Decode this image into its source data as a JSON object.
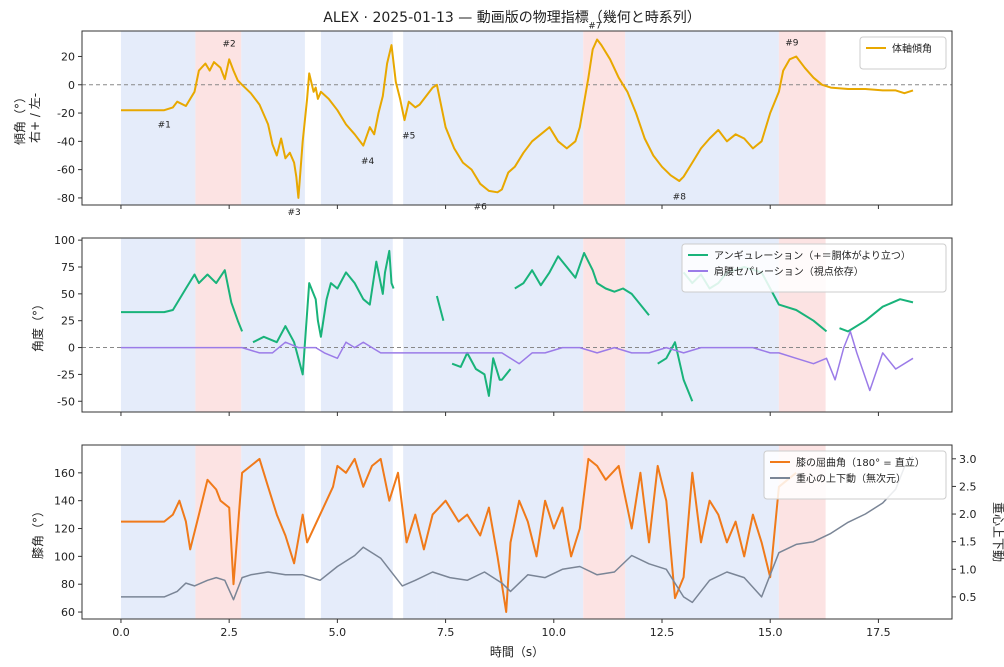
{
  "title": "ALEX · 2025-01-13 — 動画版の物理指標（幾何と時系列）",
  "colors": {
    "blue_band": "#dce6f8",
    "red_band": "#fbdada",
    "tilt": "#e8a800",
    "angulation": "#19b37a",
    "separation": "#9b7be8",
    "knee": "#f07a1a",
    "com": "#7a8596",
    "zero_line": "#888888"
  },
  "bands": [
    {
      "start": 0.0,
      "end": 1.72,
      "kind": "blue"
    },
    {
      "start": 1.72,
      "end": 2.78,
      "kind": "red"
    },
    {
      "start": 2.78,
      "end": 4.25,
      "kind": "blue"
    },
    {
      "start": 4.62,
      "end": 6.28,
      "kind": "blue"
    },
    {
      "start": 6.52,
      "end": 7.3,
      "kind": "blue"
    },
    {
      "start": 7.3,
      "end": 10.68,
      "kind": "blue"
    },
    {
      "start": 10.68,
      "end": 11.65,
      "kind": "red"
    },
    {
      "start": 11.65,
      "end": 15.2,
      "kind": "blue"
    },
    {
      "start": 15.2,
      "end": 16.28,
      "kind": "red"
    }
  ],
  "chart_data": [
    {
      "type": "line",
      "ylabel": "傾角（°）\n右+ / 左-",
      "ylim": [
        -85,
        38
      ],
      "xlim": [
        -0.9,
        19.2
      ],
      "yticks": [
        20,
        0,
        -20,
        -40,
        -60,
        -80
      ],
      "yticks_labels": [
        "20",
        "0",
        "-20",
        "-40",
        "-60",
        "-80"
      ],
      "legend": "top-right",
      "series": [
        {
          "name": "体軸傾角",
          "x": [
            0,
            1.0,
            1.2,
            1.3,
            1.5,
            1.7,
            1.8,
            1.95,
            2.05,
            2.15,
            2.3,
            2.4,
            2.5,
            2.6,
            2.7,
            2.8,
            3.0,
            3.2,
            3.4,
            3.5,
            3.6,
            3.7,
            3.8,
            3.9,
            4.0,
            4.05,
            4.1,
            4.2,
            4.3,
            4.35,
            4.45,
            4.5,
            4.55,
            4.62,
            4.8,
            5.0,
            5.2,
            5.4,
            5.6,
            5.75,
            5.85,
            5.95,
            6.05,
            6.15,
            6.25,
            6.35,
            6.45,
            6.55,
            6.65,
            6.8,
            6.9,
            7.05,
            7.2,
            7.3,
            7.5,
            7.7,
            7.9,
            8.1,
            8.3,
            8.5,
            8.7,
            8.8,
            8.95,
            9.1,
            9.3,
            9.5,
            9.7,
            9.9,
            10.1,
            10.3,
            10.5,
            10.6,
            10.8,
            10.9,
            11.0,
            11.1,
            11.3,
            11.5,
            11.7,
            11.9,
            12.1,
            12.3,
            12.5,
            12.7,
            12.9,
            13.0,
            13.2,
            13.4,
            13.6,
            13.8,
            14.0,
            14.2,
            14.4,
            14.6,
            14.8,
            15.0,
            15.2,
            15.3,
            15.45,
            15.6,
            15.8,
            16.0,
            16.2,
            16.4,
            16.8,
            17.2,
            17.6,
            17.9,
            18.1,
            18.3
          ],
          "y": [
            -18,
            -18,
            -16,
            -12,
            -15,
            -5,
            10,
            15,
            10,
            16,
            12,
            4,
            18,
            10,
            3,
            0,
            -6,
            -14,
            -28,
            -42,
            -50,
            -38,
            -52,
            -48,
            -55,
            -65,
            -80,
            -40,
            -10,
            8,
            -5,
            -2,
            -10,
            -5,
            -10,
            -18,
            -28,
            -35,
            -43,
            -30,
            -35,
            -20,
            -8,
            15,
            28,
            2,
            -10,
            -25,
            -12,
            -16,
            -14,
            -8,
            -2,
            0,
            -30,
            -45,
            -55,
            -60,
            -70,
            -75,
            -76,
            -74,
            -62,
            -58,
            -48,
            -40,
            -35,
            -30,
            -40,
            -45,
            -40,
            -30,
            5,
            25,
            32,
            28,
            18,
            5,
            -5,
            -20,
            -38,
            -50,
            -58,
            -64,
            -68,
            -65,
            -55,
            -45,
            -38,
            -32,
            -40,
            -35,
            -38,
            -45,
            -40,
            -20,
            -5,
            10,
            18,
            20,
            12,
            5,
            0,
            -2,
            -3,
            -3,
            -4,
            -4,
            -6,
            -4
          ]
        }
      ],
      "annotations": [
        {
          "label": "#1",
          "x": 1.0,
          "y": -28
        },
        {
          "label": "#2",
          "x": 2.5,
          "y": 29
        },
        {
          "label": "#3",
          "x": 4.0,
          "y": -90
        },
        {
          "label": "#4",
          "x": 5.7,
          "y": -54
        },
        {
          "label": "#5",
          "x": 6.65,
          "y": -36
        },
        {
          "label": "#6",
          "x": 8.3,
          "y": -86
        },
        {
          "label": "#7",
          "x": 10.95,
          "y": 42
        },
        {
          "label": "#8",
          "x": 12.9,
          "y": -79
        },
        {
          "label": "#9",
          "x": 15.5,
          "y": 30
        }
      ]
    },
    {
      "type": "line",
      "ylabel": "角度（°）",
      "ylim": [
        -60,
        102
      ],
      "xlim": [
        -0.9,
        19.2
      ],
      "yticks": [
        100,
        75,
        50,
        25,
        0,
        -25,
        -50
      ],
      "yticks_labels": [
        "100",
        "75",
        "50",
        "25",
        "0",
        "-25",
        "-50"
      ],
      "legend": "top-right",
      "series": [
        {
          "name": "アンギュレーション（+＝胴体がより立つ）",
          "segments": [
            {
              "x": [
                0,
                0.8,
                1.0,
                1.2,
                1.5,
                1.7,
                1.8,
                2.0,
                2.2,
                2.4,
                2.55,
                2.7,
                2.8
              ],
              "y": [
                33,
                33,
                33,
                35,
                55,
                68,
                60,
                68,
                60,
                72,
                42,
                25,
                15
              ]
            },
            {
              "x": [
                3.05,
                3.3,
                3.6,
                3.8,
                4.0,
                4.2,
                4.35,
                4.5,
                4.55,
                4.62,
                4.75,
                4.85,
                5.0,
                5.2,
                5.4,
                5.6,
                5.75,
                5.9,
                6.05,
                6.1,
                6.2,
                6.25,
                6.3
              ],
              "y": [
                5,
                10,
                5,
                20,
                5,
                -25,
                60,
                45,
                25,
                10,
                45,
                60,
                55,
                70,
                60,
                45,
                40,
                80,
                50,
                70,
                90,
                60,
                55
              ]
            },
            {
              "x": [
                7.3,
                7.45
              ],
              "y": [
                48,
                25
              ]
            },
            {
              "x": [
                7.65,
                7.85,
                8.0,
                8.2,
                8.4,
                8.5,
                8.6,
                8.75,
                8.8,
                9.0
              ],
              "y": [
                -15,
                -18,
                -5,
                -20,
                -25,
                -45,
                -10,
                -30,
                -30,
                -20
              ]
            },
            {
              "x": [
                9.1,
                9.3,
                9.5,
                9.7,
                9.9,
                10.1,
                10.3,
                10.5,
                10.7,
                10.9,
                11.0,
                11.2,
                11.4,
                11.6,
                11.8,
                12.0,
                12.2
              ],
              "y": [
                55,
                60,
                72,
                58,
                70,
                85,
                75,
                65,
                88,
                72,
                60,
                55,
                52,
                55,
                50,
                40,
                30
              ]
            },
            {
              "x": [
                12.4,
                12.6,
                12.8,
                13.0,
                13.2
              ],
              "y": [
                -15,
                -10,
                5,
                -30,
                -50
              ]
            },
            {
              "x": [
                13.0,
                13.2,
                13.4,
                13.6,
                13.8,
                14.0,
                14.4,
                14.8,
                15.2,
                15.6,
                16.0,
                16.3
              ],
              "y": [
                70,
                60,
                68,
                55,
                60,
                70,
                75,
                70,
                40,
                35,
                25,
                15
              ]
            },
            {
              "x": [
                16.6,
                16.8,
                17.2,
                17.6,
                18.0,
                18.3
              ],
              "y": [
                18,
                15,
                25,
                38,
                45,
                42
              ]
            }
          ]
        },
        {
          "name": "肩腰セパレーション（視点依存）",
          "x": [
            0,
            1.7,
            1.9,
            2.3,
            2.6,
            2.8,
            3.2,
            3.5,
            3.8,
            4.1,
            4.3,
            4.5,
            4.7,
            5.0,
            5.2,
            5.4,
            5.6,
            5.8,
            6.0,
            6.2,
            6.4,
            6.5,
            6.8,
            7.2,
            7.6,
            8.0,
            8.4,
            8.8,
            9.0,
            9.2,
            9.5,
            9.8,
            10.2,
            10.6,
            11.0,
            11.4,
            11.8,
            12.2,
            12.6,
            13.0,
            13.4,
            13.8,
            14.2,
            14.6,
            15.0,
            15.2,
            15.6,
            16.0,
            16.3,
            16.5,
            16.7,
            16.85,
            17.0,
            17.3,
            17.6,
            17.9,
            18.3
          ],
          "y": [
            0,
            0,
            0,
            0,
            0,
            0,
            -5,
            -5,
            5,
            0,
            0,
            0,
            -5,
            -10,
            5,
            0,
            5,
            0,
            -5,
            -5,
            -5,
            -5,
            -5,
            -5,
            -5,
            -5,
            -5,
            -5,
            -10,
            -15,
            -5,
            -5,
            0,
            0,
            -5,
            0,
            -5,
            -5,
            0,
            -5,
            0,
            0,
            0,
            0,
            -5,
            -5,
            -10,
            -15,
            -10,
            -30,
            0,
            15,
            -5,
            -40,
            -5,
            -20,
            -10
          ]
        }
      ]
    },
    {
      "type": "line",
      "ylabel": "膝角（°）",
      "ylabel_right": "重心上下動",
      "ylim": [
        55,
        180
      ],
      "ylim_right": [
        0.1,
        3.25
      ],
      "xlim": [
        -0.9,
        19.2
      ],
      "yticks": [
        160,
        140,
        120,
        100,
        80,
        60
      ],
      "yticks_labels": [
        "160",
        "140",
        "120",
        "100",
        "80",
        "60"
      ],
      "yticks_right": [
        3.0,
        2.5,
        2.0,
        1.5,
        1.0,
        0.5
      ],
      "yticks_right_labels": [
        "3.0",
        "2.5",
        "2.0",
        "1.5",
        "1.0",
        "0.5"
      ],
      "xticks": [
        0,
        2.5,
        5,
        7.5,
        10,
        12.5,
        15,
        17.5
      ],
      "xticks_labels": [
        "0.0",
        "2.5",
        "5.0",
        "7.5",
        "10.0",
        "12.5",
        "15.0",
        "17.5"
      ],
      "xlabel": "時間（s）",
      "legend": "top-right",
      "series": [
        {
          "name": "膝の屈曲角（180° = 直立）",
          "axis": "left",
          "x": [
            0,
            0.9,
            1.0,
            1.2,
            1.35,
            1.5,
            1.6,
            1.8,
            2.0,
            2.2,
            2.3,
            2.5,
            2.6,
            2.8,
            3.0,
            3.2,
            3.4,
            3.6,
            3.8,
            4.0,
            4.2,
            4.3,
            4.6,
            4.9,
            5.0,
            5.2,
            5.4,
            5.6,
            5.8,
            6.0,
            6.2,
            6.4,
            6.6,
            6.8,
            7.0,
            7.2,
            7.5,
            7.8,
            8.0,
            8.3,
            8.5,
            8.7,
            8.9,
            9.0,
            9.2,
            9.4,
            9.6,
            9.8,
            10.0,
            10.2,
            10.4,
            10.6,
            10.8,
            11.0,
            11.2,
            11.5,
            11.8,
            12.0,
            12.2,
            12.4,
            12.6,
            12.8,
            13.0,
            13.2,
            13.4,
            13.6,
            13.8,
            14.0,
            14.2,
            14.4,
            14.6,
            14.8,
            15.0,
            15.2,
            15.4,
            15.6
          ],
          "y": [
            125,
            125,
            125,
            130,
            140,
            125,
            105,
            130,
            155,
            148,
            140,
            135,
            80,
            160,
            165,
            170,
            150,
            130,
            115,
            95,
            130,
            110,
            130,
            150,
            165,
            160,
            170,
            150,
            165,
            170,
            140,
            160,
            110,
            130,
            105,
            130,
            140,
            125,
            130,
            115,
            135,
            100,
            60,
            110,
            140,
            125,
            100,
            140,
            120,
            135,
            100,
            120,
            170,
            165,
            155,
            165,
            120,
            160,
            110,
            165,
            140,
            70,
            85,
            160,
            110,
            140,
            130,
            110,
            125,
            100,
            130,
            110,
            85,
            150,
            155,
            160
          ]
        },
        {
          "name": "重心の上下動（無次元）",
          "axis": "right",
          "x": [
            0,
            1.0,
            1.3,
            1.5,
            1.7,
            2.0,
            2.2,
            2.4,
            2.6,
            2.8,
            3.0,
            3.4,
            3.8,
            4.2,
            4.6,
            5.0,
            5.4,
            5.6,
            5.8,
            6.0,
            6.2,
            6.5,
            6.8,
            7.2,
            7.6,
            8.0,
            8.4,
            8.8,
            9.0,
            9.4,
            9.8,
            10.2,
            10.6,
            11.0,
            11.4,
            11.8,
            12.2,
            12.6,
            13.0,
            13.2,
            13.6,
            14.0,
            14.4,
            14.8,
            15.0,
            15.2,
            15.6,
            16.0,
            16.4,
            16.8,
            17.2,
            17.6,
            17.9,
            18.1,
            18.3
          ],
          "y": [
            0.5,
            0.5,
            0.6,
            0.75,
            0.7,
            0.8,
            0.85,
            0.8,
            0.45,
            0.85,
            0.9,
            0.95,
            0.9,
            0.9,
            0.8,
            1.05,
            1.25,
            1.4,
            1.3,
            1.2,
            1.0,
            0.7,
            0.8,
            0.95,
            0.85,
            0.8,
            0.95,
            0.75,
            0.6,
            0.9,
            0.85,
            1.0,
            1.05,
            0.9,
            0.95,
            1.25,
            1.1,
            1.0,
            0.5,
            0.4,
            0.8,
            0.95,
            0.85,
            0.5,
            0.9,
            1.3,
            1.45,
            1.5,
            1.65,
            1.85,
            2.0,
            2.2,
            2.45,
            2.85,
            3.05
          ]
        }
      ]
    }
  ]
}
